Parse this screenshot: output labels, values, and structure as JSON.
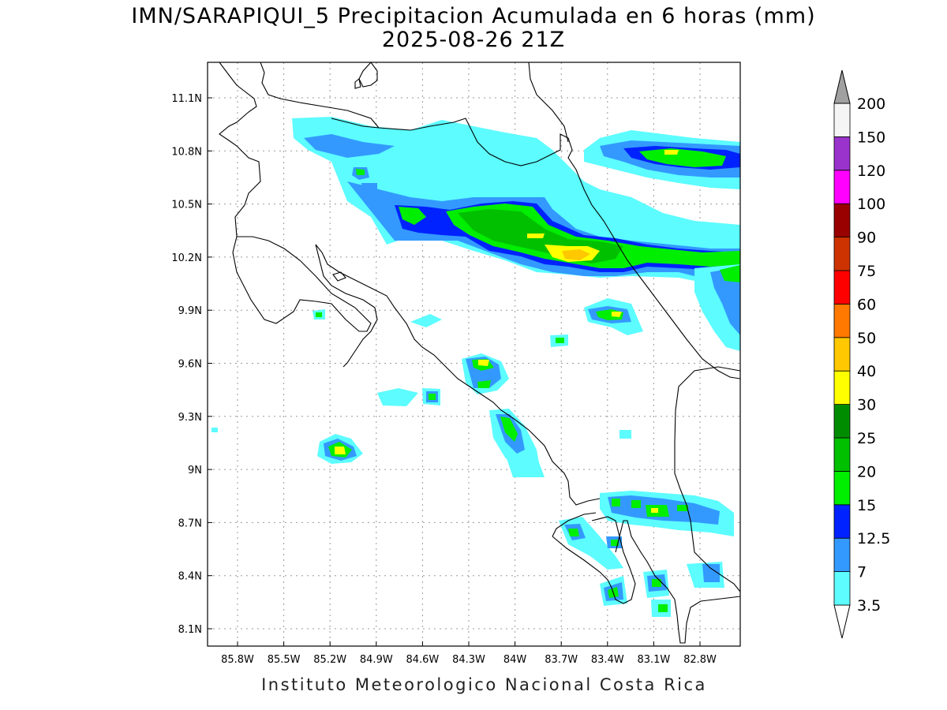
{
  "title_line1": "IMN/SARAPIQUI_5 Precipitacion Acumulada en 6 horas (mm)",
  "title_line2": "2025-08-26 21Z",
  "footer": "Instituto Meteorologico Nacional Costa Rica",
  "lon_ticks": [
    "85.8W",
    "85.5W",
    "85.2W",
    "84.9W",
    "84.6W",
    "84.3W",
    "84W",
    "83.7W",
    "83.4W",
    "83.1W",
    "82.8W"
  ],
  "lat_ticks": [
    "11.1N",
    "10.8N",
    "10.5N",
    "10.2N",
    "9.9N",
    "9.6N",
    "9.3N",
    "9N",
    "8.7N",
    "8.4N",
    "8.1N"
  ],
  "colorbar": {
    "labels": [
      "3.5",
      "7",
      "12.5",
      "15",
      "20",
      "25",
      "30",
      "40",
      "50",
      "60",
      "75",
      "90",
      "100",
      "120",
      "150",
      "200"
    ],
    "colors": [
      "#ffffff",
      "#5cfcff",
      "#3399ff",
      "#0022ff",
      "#00ee00",
      "#00c000",
      "#008c00",
      "#ffff00",
      "#ffc800",
      "#ff7800",
      "#ff0000",
      "#cc3300",
      "#990000",
      "#ff00ff",
      "#9933cc",
      "#f5f5f5",
      "#a0a0a0"
    ]
  },
  "precip_colors": {
    "c3": "#5cfcff",
    "c7": "#3399ff",
    "c12": "#0022ff",
    "c15": "#00ee00",
    "c20": "#00c000",
    "c25": "#008c00",
    "c30": "#ffff00",
    "c40": "#ffc800"
  }
}
